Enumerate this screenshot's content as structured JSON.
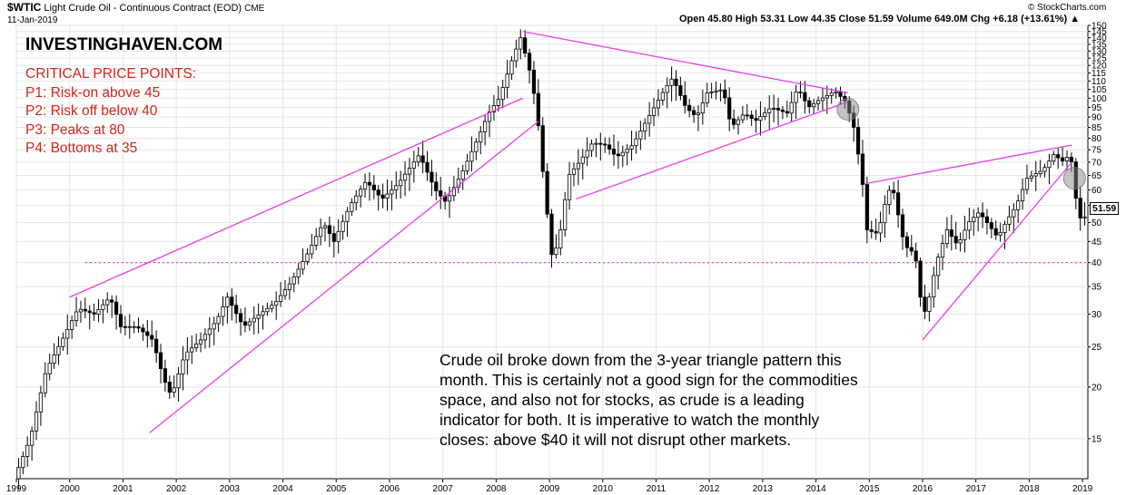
{
  "header": {
    "symbol": "$WTIC",
    "description": "Light Crude Oil - Continuous Contract (EOD)",
    "exchange": "CME",
    "date": "11-Jan-2019",
    "ohlc": "Open 45.80  High 53.31  Low 44.35  Close 51.59  Volume 649.0M  Chg +6.18 (+13.61%) ▲",
    "copyright": "© StockCharts.com"
  },
  "annotations": {
    "brand": "INVESTINGHAVEN.COM",
    "critical_title": "CRITICAL PRICE POINTS:",
    "critical_points": [
      "P1: Risk-on above 45",
      "P2: Risk off below 40",
      "P3: Peaks at 80",
      "P4: Bottoms at 35"
    ],
    "note_lines": [
      "Crude oil broke down from the 3-year triangle pattern this",
      "month. This is certainly not a good sign for the commodities",
      "space, and also not for stocks, as crude is a leading",
      "indicator for both. It is imperative to watch the monthly",
      "closes: above $40 it will not disrupt other markets."
    ],
    "last_price_label": "51.59"
  },
  "colors": {
    "trendline": "#e83fe3",
    "candle": "#000000",
    "grid": "#e6e6e6",
    "circle": "#8a8a8a",
    "text_red": "#d0271d"
  },
  "chart_data": {
    "type": "candlestick",
    "scale": "log",
    "ylim": [
      12,
      150
    ],
    "x_range": [
      1999,
      2019.1
    ],
    "x_ticks": [
      "1999",
      "2000",
      "2001",
      "2002",
      "2003",
      "2004",
      "2005",
      "2006",
      "2007",
      "2008",
      "2009",
      "2010",
      "2011",
      "2012",
      "2013",
      "2014",
      "2015",
      "2016",
      "2017",
      "2018",
      "2019"
    ],
    "y_ticks": [
      "150",
      "145",
      "140",
      "135",
      "130",
      "125",
      "120",
      "115",
      "110",
      "105",
      "100",
      "95",
      "90",
      "85",
      "80",
      "75",
      "70",
      "65",
      "60",
      "55",
      "50",
      "45",
      "40",
      "35",
      "30",
      "25",
      "20",
      "15"
    ],
    "last_close": 51.59,
    "horizontal_level": 40,
    "trendlines": [
      {
        "from": [
          2000.0,
          33
        ],
        "to": [
          2008.5,
          100
        ]
      },
      {
        "from": [
          2001.5,
          15.5
        ],
        "to": [
          2008.8,
          88
        ]
      },
      {
        "from": [
          2008.5,
          145
        ],
        "to": [
          2014.6,
          103
        ]
      },
      {
        "from": [
          2009.5,
          57
        ],
        "to": [
          2014.6,
          98
        ]
      },
      {
        "from": [
          2014.9,
          62
        ],
        "to": [
          2018.8,
          77
        ]
      },
      {
        "from": [
          2016.0,
          26
        ],
        "to": [
          2018.8,
          70
        ]
      }
    ],
    "highlight_circles": [
      {
        "x": 2014.6,
        "y": 94
      },
      {
        "x": 2018.85,
        "y": 64
      }
    ],
    "anchors": [
      [
        1999.0,
        12
      ],
      [
        1999.3,
        15
      ],
      [
        1999.6,
        22
      ],
      [
        1999.9,
        26
      ],
      [
        2000.2,
        31
      ],
      [
        2000.5,
        30
      ],
      [
        2000.8,
        33
      ],
      [
        2001.0,
        28
      ],
      [
        2001.3,
        28
      ],
      [
        2001.6,
        26
      ],
      [
        2001.8,
        21
      ],
      [
        2001.95,
        19
      ],
      [
        2002.2,
        24
      ],
      [
        2002.5,
        26
      ],
      [
        2002.8,
        29
      ],
      [
        2003.0,
        33
      ],
      [
        2003.3,
        28
      ],
      [
        2003.6,
        30
      ],
      [
        2003.9,
        32
      ],
      [
        2004.2,
        36
      ],
      [
        2004.5,
        42
      ],
      [
        2004.8,
        50
      ],
      [
        2005.0,
        45
      ],
      [
        2005.3,
        55
      ],
      [
        2005.6,
        63
      ],
      [
        2005.9,
        57
      ],
      [
        2006.2,
        62
      ],
      [
        2006.6,
        73
      ],
      [
        2006.9,
        60
      ],
      [
        2007.1,
        56
      ],
      [
        2007.4,
        66
      ],
      [
        2007.7,
        80
      ],
      [
        2007.9,
        92
      ],
      [
        2008.1,
        100
      ],
      [
        2008.35,
        125
      ],
      [
        2008.5,
        140
      ],
      [
        2008.65,
        120
      ],
      [
        2008.8,
        95
      ],
      [
        2008.95,
        60
      ],
      [
        2009.1,
        40
      ],
      [
        2009.25,
        48
      ],
      [
        2009.4,
        65
      ],
      [
        2009.6,
        70
      ],
      [
        2009.85,
        78
      ],
      [
        2010.1,
        77
      ],
      [
        2010.3,
        72
      ],
      [
        2010.6,
        77
      ],
      [
        2010.9,
        90
      ],
      [
        2011.2,
        105
      ],
      [
        2011.35,
        112
      ],
      [
        2011.6,
        95
      ],
      [
        2011.8,
        90
      ],
      [
        2012.0,
        103
      ],
      [
        2012.3,
        105
      ],
      [
        2012.45,
        85
      ],
      [
        2012.7,
        92
      ],
      [
        2012.9,
        88
      ],
      [
        2013.2,
        95
      ],
      [
        2013.5,
        92
      ],
      [
        2013.7,
        106
      ],
      [
        2013.9,
        95
      ],
      [
        2014.1,
        99
      ],
      [
        2014.4,
        104
      ],
      [
        2014.6,
        98
      ],
      [
        2014.75,
        85
      ],
      [
        2014.9,
        65
      ],
      [
        2015.0,
        48
      ],
      [
        2015.2,
        47
      ],
      [
        2015.4,
        60
      ],
      [
        2015.5,
        59
      ],
      [
        2015.7,
        44
      ],
      [
        2015.9,
        42
      ],
      [
        2016.0,
        33
      ],
      [
        2016.1,
        30
      ],
      [
        2016.3,
        40
      ],
      [
        2016.5,
        48
      ],
      [
        2016.7,
        44
      ],
      [
        2016.9,
        50
      ],
      [
        2017.1,
        53
      ],
      [
        2017.3,
        49
      ],
      [
        2017.45,
        46
      ],
      [
        2017.6,
        50
      ],
      [
        2017.8,
        55
      ],
      [
        2018.0,
        64
      ],
      [
        2018.3,
        67
      ],
      [
        2018.5,
        73
      ],
      [
        2018.7,
        70
      ],
      [
        2018.8,
        74
      ],
      [
        2018.88,
        65
      ],
      [
        2018.95,
        51
      ],
      [
        2019.05,
        51.59
      ]
    ]
  }
}
